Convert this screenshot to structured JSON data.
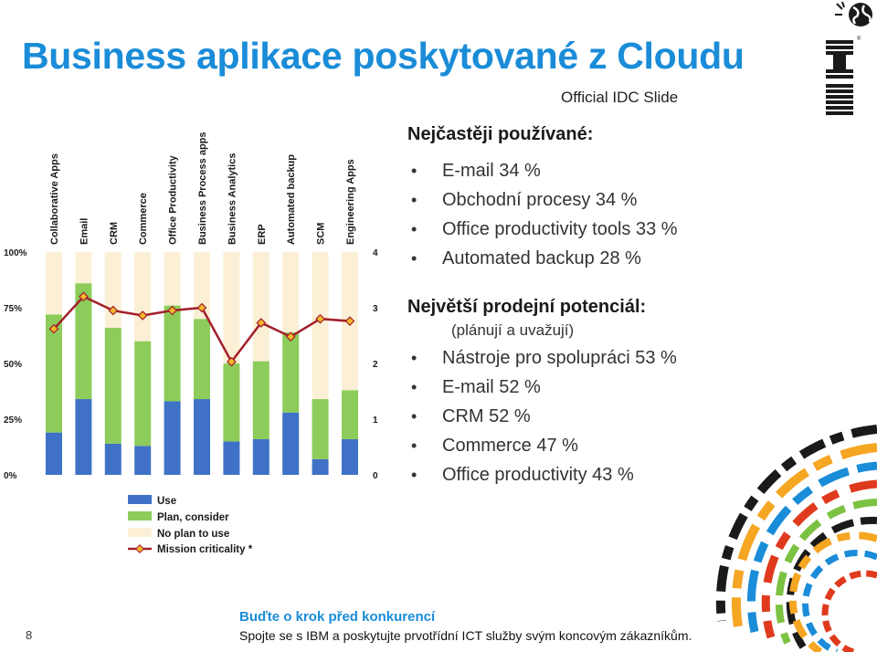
{
  "slide": {
    "title": "Business aplikace poskytované z Cloudu",
    "subtitle": "Official IDC Slide",
    "page_number": "8",
    "logo_text": "IBM",
    "footer_title": "Buďte o krok před konkurencí",
    "footer_text": "Spojte se s IBM a poskytujte prvotřídní ICT služby svým koncovým zákazníkům."
  },
  "most_used": {
    "heading": "Nejčastěji používané:",
    "items": [
      "E-mail 34 %",
      "Obchodní procesy 34 %",
      "Office productivity tools 33 %",
      "Automated backup 28 %"
    ]
  },
  "sales_potential": {
    "heading": "Největší prodejní potenciál:",
    "note": "(plánují a uvažují)",
    "items": [
      "Nástroje pro spolupráci 53 %",
      "E-mail 52 %",
      "CRM 52 %",
      "Commerce 47 %",
      "Office productivity 43 %"
    ]
  },
  "chart_data": {
    "type": "bar",
    "stacked": true,
    "categories": [
      "Collaborative Apps",
      "Email",
      "CRM",
      "Commerce",
      "Office Productivity",
      "Business Process apps",
      "Business Analytics",
      "ERP",
      "Automated backup",
      "SCM",
      "Engineering Apps"
    ],
    "series": [
      {
        "name": "Use",
        "color": "#3f72c6",
        "values": [
          19,
          34,
          14,
          13,
          33,
          34,
          15,
          16,
          28,
          7,
          16
        ]
      },
      {
        "name": "Plan, consider",
        "color": "#8dcc5a",
        "values": [
          53,
          52,
          52,
          47,
          43,
          36,
          35,
          35,
          36,
          27,
          22
        ]
      },
      {
        "name": "No plan to use",
        "color": "#fbf0d6",
        "values": [
          28,
          14,
          34,
          40,
          24,
          30,
          50,
          49,
          36,
          66,
          62
        ]
      }
    ],
    "line": {
      "name": "Mission criticality *",
      "color": "#a3202c",
      "marker_color": "#f5b82a",
      "values": [
        2.62,
        3.2,
        2.95,
        2.86,
        2.95,
        3.0,
        2.03,
        2.73,
        2.48,
        2.8,
        2.76
      ]
    },
    "y_left": {
      "min": 0,
      "max": 100,
      "ticks": [
        "0%",
        "25%",
        "50%",
        "75%",
        "100%"
      ]
    },
    "y_right": {
      "min": 0,
      "max": 4,
      "ticks": [
        "0",
        "1",
        "2",
        "3",
        "4"
      ]
    },
    "legend_position": "bottom"
  }
}
